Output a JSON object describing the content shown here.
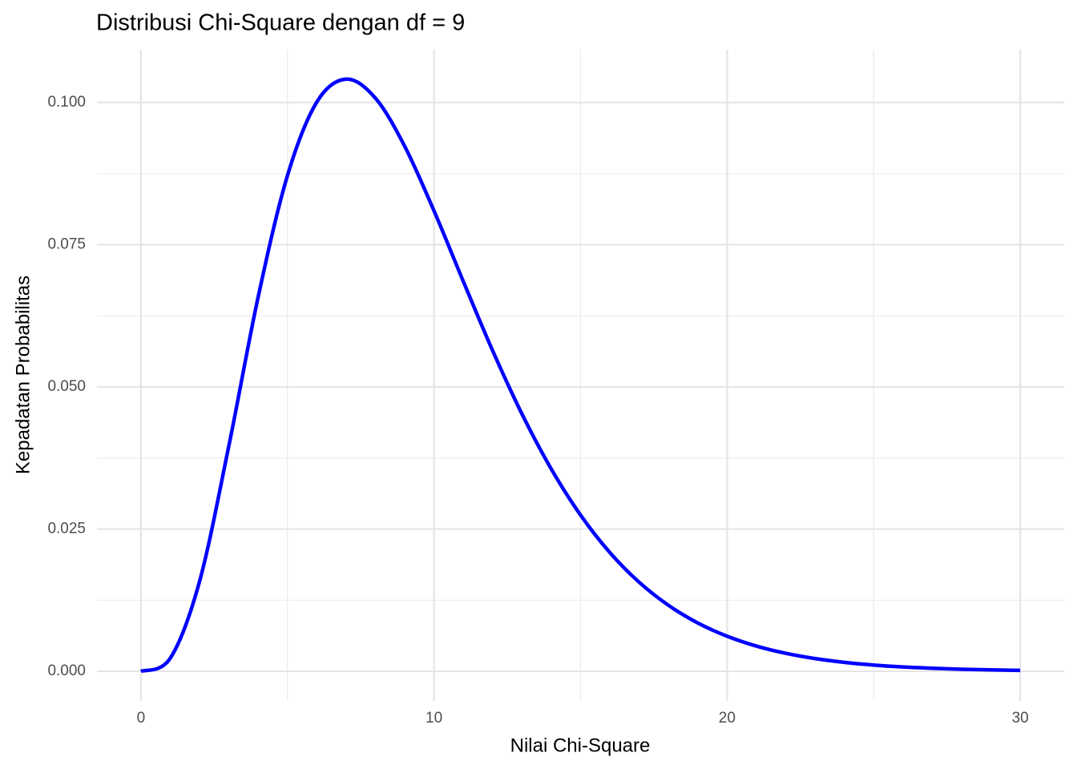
{
  "chart_data": {
    "type": "line",
    "title": "Distribusi Chi-Square dengan df = 9",
    "x_label": "Nilai Chi-Square",
    "y_label": "Kepadatan Probabilitas",
    "x": [
      0,
      1,
      2,
      3,
      4,
      5,
      6,
      7,
      8,
      9,
      10,
      11,
      12,
      13,
      14,
      15,
      16,
      17,
      18,
      19,
      20,
      21,
      22,
      23,
      24,
      25,
      26,
      27,
      28,
      29,
      30
    ],
    "series": [
      {
        "color": "#0000ff",
        "values": [
          0,
          0.002304,
          0.015814,
          0.039647,
          0.06582,
          0.087175,
          0.100087,
          0.104122,
          0.100779,
          0.09231,
          0.080957,
          0.068547,
          0.056377,
          0.045249,
          0.035573,
          0.027469,
          0.020883,
          0.01566,
          0.011602,
          0.008503,
          0.006172,
          0.00444,
          0.003169,
          0.002246,
          0.001581,
          0.001106,
          0.00077,
          0.000533,
          0.000367,
          0.000252,
          0.000172
        ]
      }
    ],
    "xlim": [
      -1.5,
      31.5
    ],
    "ylim": [
      -0.0052,
      0.1093
    ],
    "xticks": [
      0,
      10,
      20,
      30
    ],
    "x_minor_ticks": [
      5,
      15,
      25
    ],
    "yticks": [
      {
        "value": 0,
        "label": "0.000"
      },
      {
        "value": 0.025,
        "label": "0.025"
      },
      {
        "value": 0.05,
        "label": "0.050"
      },
      {
        "value": 0.075,
        "label": "0.075"
      },
      {
        "value": 0.1,
        "label": "0.100"
      }
    ],
    "y_minor_ticks": [
      0.0125,
      0.0375,
      0.0625,
      0.0875
    ],
    "grid": true
  }
}
